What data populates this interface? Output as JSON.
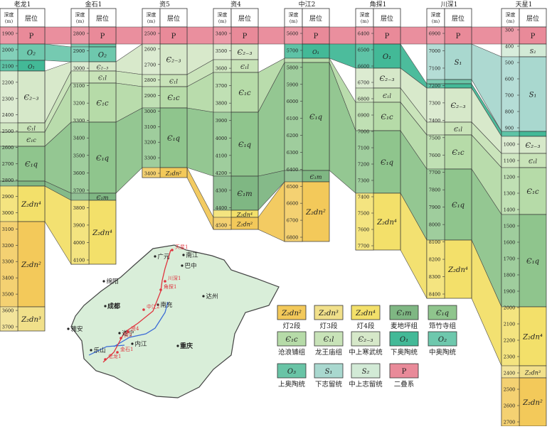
{
  "header": {
    "depth_label": "深度",
    "depth_unit": "(m)",
    "layer_label": "层位"
  },
  "colors": {
    "P": "#e98a99",
    "O1": "#43b997",
    "O2": "#6ec8ad",
    "O3": "#69c4a6",
    "S1": "#a9d8cf",
    "S2": "#d2ead6",
    "E23": "#d6e8c9",
    "E1l": "#c8e3b8",
    "E1c": "#b6dba8",
    "E1q": "#8fc58d",
    "E1m": "#7fb783",
    "Z2dn2": "#f3c95a",
    "Z2dn3": "#f1e08a",
    "Z2dn4": "#f3e06a",
    "map_fill": "#d9eed9",
    "well_line": "#e0343e",
    "river": "#3b6bd6"
  },
  "wells": [
    {
      "name": "老龙1",
      "x": 0,
      "ticks": [
        "1900",
        "2000",
        "2100",
        "2200",
        "2300",
        "2400",
        "2500",
        "2600",
        "2700",
        "2800",
        "2900",
        "3000",
        "3100",
        "3200",
        "3300",
        "3400",
        "3500",
        "3600",
        "3700"
      ]
    },
    {
      "name": "金石1",
      "x": 100,
      "ticks": [
        "2800",
        "2900",
        "3000",
        "3100",
        "3200",
        "3300",
        "3400",
        "3500",
        "3600",
        "3700",
        "3800",
        "3900",
        "4000",
        "4100"
      ]
    },
    {
      "name": "资5",
      "x": 200,
      "ticks": [
        "2500",
        "2600",
        "2700",
        "2800",
        "2900",
        "3000",
        "3100",
        "3200",
        "3300",
        "3400"
      ]
    },
    {
      "name": "资4",
      "x": 300,
      "ticks": [
        "3400",
        "3500",
        "3600",
        "3700",
        "3800",
        "3900",
        "4000",
        "4100",
        "4200",
        "4300",
        "4400",
        "4500"
      ]
    },
    {
      "name": "中江2",
      "x": 400,
      "ticks": [
        "5600",
        "5700",
        "5800",
        "5900",
        "6000",
        "6100",
        "6200",
        "6300",
        "6400",
        "6500",
        "6600",
        "6700",
        "6800"
      ]
    },
    {
      "name": "角探1",
      "x": 500,
      "ticks": [
        "6400",
        "6500",
        "6600",
        "6700",
        "6800",
        "6900",
        "7000",
        "7100",
        "7200",
        "7300",
        "7400",
        "7500",
        "7600",
        "7700"
      ]
    },
    {
      "name": "川深1",
      "x": 600,
      "ticks": [
        "6900",
        "7000",
        "7100",
        "7200",
        "7300",
        "7400",
        "7500",
        "7600",
        "7700",
        "7800",
        "7900",
        "8000",
        "8100",
        "8200",
        "8300",
        "8400"
      ]
    },
    {
      "name": "天星1",
      "x": 705,
      "ticks": [
        "300",
        "400",
        "500",
        "600",
        "700",
        "800",
        "900",
        "1000",
        "1100",
        "1200",
        "1300",
        "1400",
        "1500",
        "1600",
        "1700",
        "1800",
        "1900",
        "2000",
        "2100",
        "2200",
        "2300",
        "2400",
        "2500",
        "2600",
        "2700"
      ]
    }
  ],
  "layers": {
    "P": "P",
    "O1": "O₁",
    "O2": "O₂",
    "O3": "O₃",
    "S1": "S₁",
    "S2": "S₂",
    "E23": "Є₂₋₃",
    "E1l": "Є₁l",
    "E1c": "Є₁c",
    "E1q": "Є₁q",
    "E1m": "Є₁m",
    "Z2dn2": "Z₂dn²",
    "Z2dn3": "Z₂dn³",
    "Z2dn4": "Z₂dn⁴"
  },
  "legend": [
    {
      "code": "Z2dn2",
      "symbol": "Z₂dn²",
      "name": "灯2段"
    },
    {
      "code": "Z2dn3",
      "symbol": "Z₂dn³",
      "name": "灯3段"
    },
    {
      "code": "Z2dn4",
      "symbol": "Z₂dn⁴",
      "name": "灯4段"
    },
    {
      "code": "E1m",
      "symbol": "Є₁m",
      "name": "麦地坪组"
    },
    {
      "code": "E1q",
      "symbol": "Є₁q",
      "name": "筇竹寺组"
    },
    {
      "code": "E1c",
      "symbol": "Є₁c",
      "name": "沧浪铺组"
    },
    {
      "code": "E1l",
      "symbol": "Є₁l",
      "name": "龙王庙组"
    },
    {
      "code": "E23",
      "symbol": "Є₂₋₃",
      "name": "中上寒武统"
    },
    {
      "code": "O1",
      "symbol": "O₁",
      "name": "下奥陶统"
    },
    {
      "code": "O2",
      "symbol": "O₂",
      "name": "中奥陶统"
    },
    {
      "code": "O3",
      "symbol": "O₃",
      "name": "上奥陶统"
    },
    {
      "code": "S1",
      "symbol": "S₁",
      "name": "下志留统"
    },
    {
      "code": "S2",
      "symbol": "S₂",
      "name": "中上志留统"
    },
    {
      "code": "P",
      "symbol": "P",
      "name": "二叠系"
    }
  ],
  "map": {
    "cities": [
      "广元",
      "巴中",
      "南江",
      "达州",
      "绵阳",
      "成都",
      "南充",
      "遂宁",
      "内江",
      "重庆",
      "雅安",
      "乐山"
    ],
    "wells": [
      "天星1",
      "川深1",
      "角探1",
      "中江2",
      "资4",
      "资5",
      "金石1",
      "老龙1"
    ]
  }
}
